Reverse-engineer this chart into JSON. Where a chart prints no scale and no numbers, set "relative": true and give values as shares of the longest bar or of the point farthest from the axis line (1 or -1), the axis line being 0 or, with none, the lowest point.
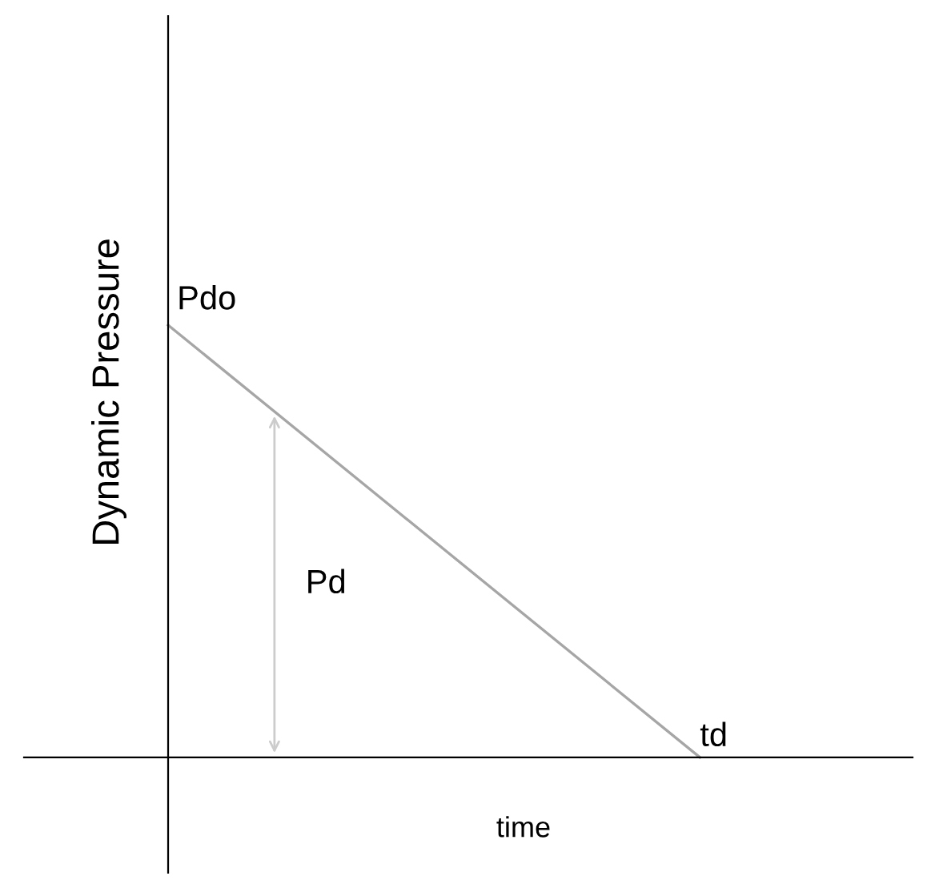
{
  "chart_data": {
    "type": "line",
    "relative": true,
    "xlabel": "time",
    "ylabel": "Dynamic Pressure",
    "categories": [
      null,
      null
    ],
    "series": [
      {
        "color": "#a6a6a6",
        "values": [
          1,
          0
        ]
      }
    ],
    "annotations": [
      "Pdo",
      "Pd",
      "td"
    ],
    "marker": "none",
    "line_style": "solid",
    "legend": false
  }
}
